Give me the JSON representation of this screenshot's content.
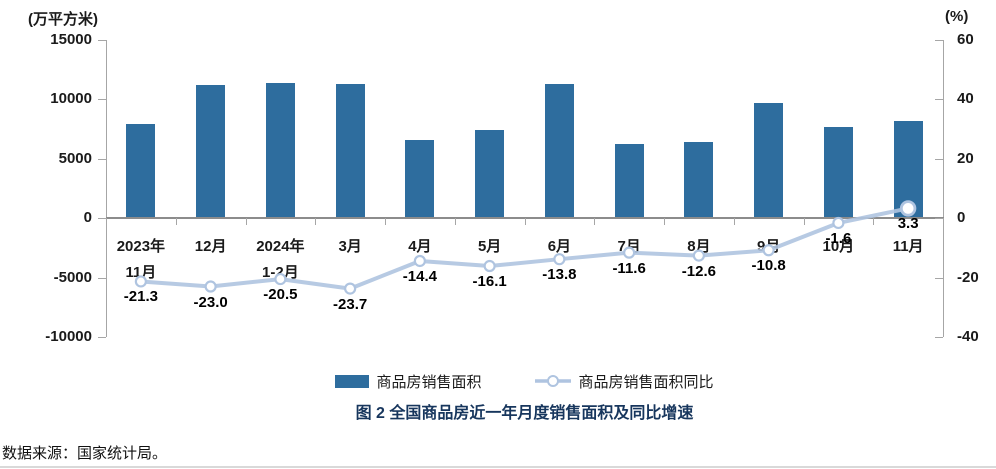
{
  "figure": {
    "source_note": "数据来源：国家统计局。"
  },
  "chart_data": {
    "type": "combo-bar-line",
    "title": "图 2 全国商品房近一年月度销售面积及同比增速",
    "categories": [
      "2023年11月",
      "12月",
      "2024年1-2月",
      "3月",
      "4月",
      "5月",
      "6月",
      "7月",
      "8月",
      "9月",
      "10月",
      "11月"
    ],
    "category_display_lines": [
      [
        "2023年",
        "11月"
      ],
      [
        "12月"
      ],
      [
        "2024年",
        "1-2月"
      ],
      [
        "3月"
      ],
      [
        "4月"
      ],
      [
        "5月"
      ],
      [
        "6月"
      ],
      [
        "7月"
      ],
      [
        "8月"
      ],
      [
        "9月"
      ],
      [
        "10月"
      ],
      [
        "11月"
      ]
    ],
    "series": [
      {
        "name": "商品房销售面积",
        "type": "bar",
        "axis": "left",
        "values": [
          7900,
          11250,
          11400,
          11300,
          6580,
          7390,
          11270,
          6230,
          6450,
          9680,
          7650,
          8190
        ]
      },
      {
        "name": "商品房销售面积同比",
        "type": "line",
        "axis": "right",
        "values": [
          -21.3,
          -23.0,
          -20.5,
          -23.7,
          -14.4,
          -16.1,
          -13.8,
          -11.6,
          -12.6,
          -10.8,
          -1.6,
          3.3
        ],
        "data_labels": [
          "-21.3",
          "-23.0",
          "-20.5",
          "-23.7",
          "-14.4",
          "-16.1",
          "-13.8",
          "-11.6",
          "-12.6",
          "-10.8",
          "-1.6",
          "3.3"
        ]
      }
    ],
    "left_axis": {
      "unit": "(万平方米)",
      "min": -10000,
      "max": 15000,
      "ticks": [
        15000,
        10000,
        5000,
        0,
        -5000,
        -10000
      ]
    },
    "right_axis": {
      "unit": "(%)",
      "min": -40,
      "max": 60,
      "ticks": [
        60,
        40,
        20,
        0,
        -20,
        -40
      ]
    },
    "grid": false,
    "legend_position": "bottom"
  },
  "colors": {
    "bar": "#2e6d9e",
    "line": "#afc4e0",
    "marker_fill": "#ffffff",
    "axis": "#a6a6a6",
    "title": "#17365d",
    "text": "#1a1a1a"
  }
}
